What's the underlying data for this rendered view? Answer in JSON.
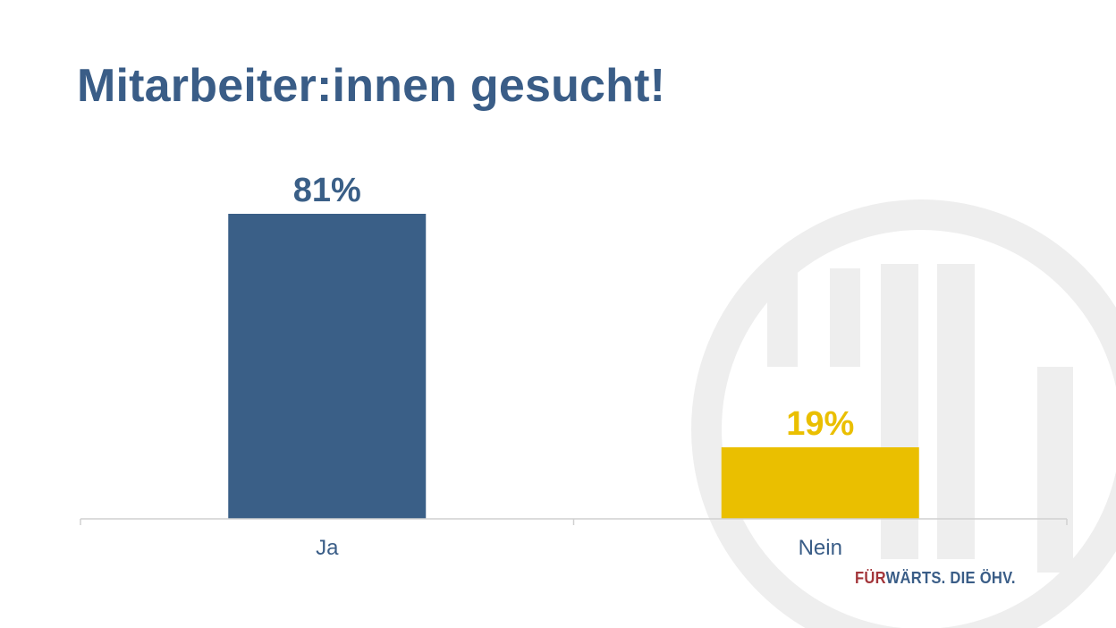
{
  "slide": {
    "title": "Mitarbeiter:innen gesucht!",
    "watermark": {
      "text": "ÖHV",
      "color": "#eeeeee"
    },
    "brand": {
      "prefix": "FÜR",
      "rest": "WÄRTS. DIE ÖHV.",
      "prefix_color": "#a3353a",
      "rest_color": "#3a5d87"
    }
  },
  "chart_data": {
    "type": "bar",
    "categories": [
      "Ja",
      "Nein"
    ],
    "values": [
      81,
      19
    ],
    "data_labels": [
      "81%",
      "19%"
    ],
    "colors": [
      "#3a5f87",
      "#eabf00"
    ],
    "title": "",
    "xlabel": "",
    "ylabel": "",
    "ylim": [
      0,
      81
    ],
    "grid": false,
    "legend": "none",
    "axis_color": "#d0d0d0",
    "category_label_color": "#3a5d87"
  }
}
